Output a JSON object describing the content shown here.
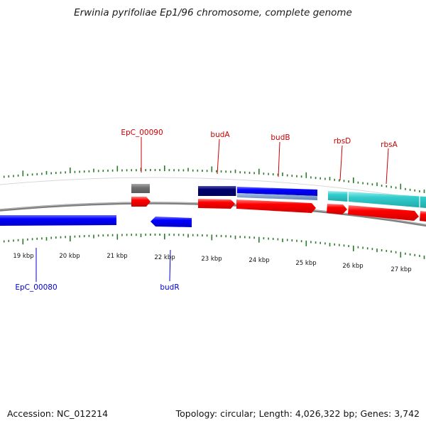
{
  "title": "Erwinia pyrifoliae Ep1/96 chromosome, complete genome",
  "footer": {
    "accession": "Accession: NC_012214",
    "summary": "Topology: circular; Length: 4,026,322 bp; Genes: 3,742"
  },
  "colors": {
    "top_label": "#cc0000",
    "bottom_label": "#0000cc",
    "tick": "#2a7a2a",
    "backbone": "#808080"
  },
  "scale": {
    "tick_labels": [
      "19 kbp",
      "20 kbp",
      "21 kbp",
      "22 kbp",
      "23 kbp",
      "24 kbp",
      "25 kbp",
      "26 kbp",
      "27 kbp"
    ]
  },
  "genes": [
    {
      "id": "g-epc90",
      "name": "EpC_00090",
      "label_position": "top"
    },
    {
      "id": "g-budA",
      "name": "budA",
      "label_position": "top"
    },
    {
      "id": "g-budB",
      "name": "budB",
      "label_position": "top"
    },
    {
      "id": "g-rbsD",
      "name": "rbsD",
      "label_position": "top"
    },
    {
      "id": "g-rbsA",
      "name": "rbsA",
      "label_position": "top"
    },
    {
      "id": "g-epc80",
      "name": "EpC_00080",
      "label_position": "bottom"
    },
    {
      "id": "g-budR",
      "name": "budR",
      "label_position": "bottom"
    }
  ],
  "feature_colors": {
    "gray_feature": "#6e6e6e",
    "cds_forward": "#ff0000",
    "cds_reverse": "#0000ff",
    "dark_navy": "#00007a",
    "teal": "#33cccc"
  }
}
